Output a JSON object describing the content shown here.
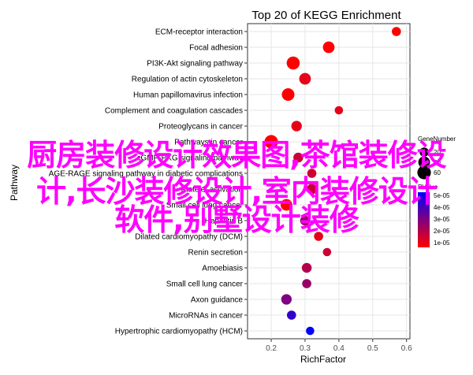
{
  "chart_data": {
    "type": "scatter",
    "title": "Top 20 of KEGG Enrichment",
    "xlabel": "RichFactor",
    "ylabel": "Pathway",
    "xlim": [
      0.13,
      0.61
    ],
    "xticks": [
      "0.2",
      "0.3",
      "0.4",
      "0.5",
      "0.6"
    ],
    "grid": true,
    "categories": [
      "ECM-receptor interaction",
      "Focal adhesion",
      "PI3K-Akt signaling pathway",
      "Regulation of actin cytoskeleton",
      "Human papillomavirus infection",
      "Complement and coagulation cascades",
      "Proteoglycans in cancer",
      "Pathways in cancer",
      "cGMP-PKG signaling pathway",
      "AGE-RAGE signaling pathway in diabetic complications",
      "Platelet activation",
      "Small cell lung cancer",
      "Hepatitis B",
      "Dilated cardiomyopathy (DCM)",
      "Renin secretion",
      "Amoebiasis",
      "Small cell lung cancer",
      "Axon guidance",
      "MicroRNAs in cancer",
      "Hypertrophic cardiomyopathy (HCM)"
    ],
    "x": [
      0.57,
      0.37,
      0.265,
      0.3,
      0.25,
      0.4,
      0.275,
      0.2,
      0.28,
      0.32,
      0.32,
      0.245,
      0.3,
      0.34,
      0.365,
      0.305,
      0.305,
      0.245,
      0.26,
      0.315
    ],
    "gene_number": [
      20,
      40,
      55,
      40,
      50,
      15,
      30,
      60,
      25,
      20,
      30,
      40,
      25,
      20,
      15,
      25,
      20,
      30,
      20,
      15
    ],
    "p_value": [
      0.01,
      0.01,
      0.01,
      0.015,
      0.01,
      0.015,
      0.015,
      0.01,
      0.02,
      0.02,
      0.02,
      0.01,
      0.03,
      0.015,
      0.02,
      0.025,
      0.03,
      0.035,
      0.05,
      0.06
    ],
    "legend_size": {
      "title": "GeneNumber",
      "values": [
        "20",
        "40",
        "60"
      ],
      "position": "right"
    },
    "legend_color": {
      "title": "PValue",
      "ticks": [
        "5e-05",
        "4e-05",
        "3e-05",
        "2e-05",
        "1e-05"
      ],
      "low_color": "#ff0000",
      "high_color": "#0000ff"
    }
  },
  "overlay": {
    "line1": "厨房装修设计效果图,茶馆装修设",
    "line2": "计,长沙装修设计,室内装修设计",
    "line3": "软件,别墅设计装修",
    "color": "#ff00ff"
  }
}
